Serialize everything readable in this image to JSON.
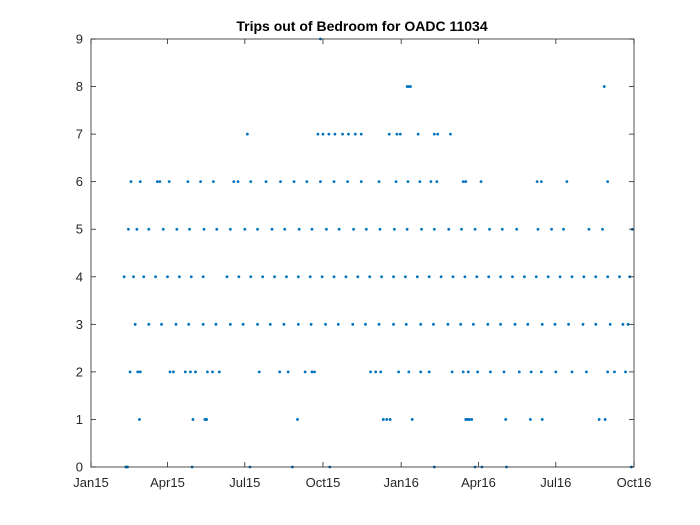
{
  "chart_data": {
    "type": "scatter",
    "title": "Trips out of Bedroom for OADC 11034",
    "xlabel": "",
    "ylabel": "",
    "x_axis": {
      "type": "date",
      "range": [
        "2015-01-01",
        "2016-10-01"
      ],
      "ticks": [
        {
          "date": "2015-01-01",
          "label": "Jan15"
        },
        {
          "date": "2015-04-01",
          "label": "Apr15"
        },
        {
          "date": "2015-07-01",
          "label": "Jul15"
        },
        {
          "date": "2015-10-01",
          "label": "Oct15"
        },
        {
          "date": "2016-01-01",
          "label": "Jan16"
        },
        {
          "date": "2016-04-01",
          "label": "Apr16"
        },
        {
          "date": "2016-07-01",
          "label": "Jul16"
        },
        {
          "date": "2016-10-01",
          "label": "Oct16"
        }
      ]
    },
    "y_axis": {
      "range": [
        0,
        9
      ],
      "ticks": [
        "0",
        "1",
        "2",
        "3",
        "4",
        "5",
        "6",
        "7",
        "8",
        "9"
      ]
    },
    "grid": false,
    "marker_color": "#0072BD",
    "series": [
      {
        "points": [
          {
            "x": "2015-02-11",
            "y": 0
          },
          {
            "x": "2015-02-12",
            "y": 0
          },
          {
            "x": "2015-02-13",
            "y": 0
          },
          {
            "x": "2015-04-30",
            "y": 0
          },
          {
            "x": "2015-07-07",
            "y": 0
          },
          {
            "x": "2015-08-26",
            "y": 0
          },
          {
            "x": "2015-10-09",
            "y": 0
          },
          {
            "x": "2016-02-09",
            "y": 0
          },
          {
            "x": "2016-03-28",
            "y": 0
          },
          {
            "x": "2016-04-05",
            "y": 0
          },
          {
            "x": "2016-05-04",
            "y": 0
          },
          {
            "x": "2016-09-28",
            "y": 0
          },
          {
            "x": "2015-02-27",
            "y": 1
          },
          {
            "x": "2015-05-01",
            "y": 1
          },
          {
            "x": "2015-05-15",
            "y": 1
          },
          {
            "x": "2015-05-17",
            "y": 1
          },
          {
            "x": "2015-09-01",
            "y": 1
          },
          {
            "x": "2015-12-11",
            "y": 1
          },
          {
            "x": "2015-12-15",
            "y": 1
          },
          {
            "x": "2015-12-19",
            "y": 1
          },
          {
            "x": "2016-01-14",
            "y": 1
          },
          {
            "x": "2016-03-17",
            "y": 1
          },
          {
            "x": "2016-03-19",
            "y": 1
          },
          {
            "x": "2016-03-21",
            "y": 1
          },
          {
            "x": "2016-03-24",
            "y": 1
          },
          {
            "x": "2016-05-03",
            "y": 1
          },
          {
            "x": "2016-06-01",
            "y": 1
          },
          {
            "x": "2016-06-15",
            "y": 1
          },
          {
            "x": "2016-08-21",
            "y": 1
          },
          {
            "x": "2016-08-28",
            "y": 1
          },
          {
            "x": "2015-02-16",
            "y": 2
          },
          {
            "x": "2015-02-25",
            "y": 2
          },
          {
            "x": "2015-02-28",
            "y": 2
          },
          {
            "x": "2015-04-04",
            "y": 2
          },
          {
            "x": "2015-04-08",
            "y": 2
          },
          {
            "x": "2015-04-22",
            "y": 2
          },
          {
            "x": "2015-04-28",
            "y": 2
          },
          {
            "x": "2015-05-04",
            "y": 2
          },
          {
            "x": "2015-05-18",
            "y": 2
          },
          {
            "x": "2015-05-24",
            "y": 2
          },
          {
            "x": "2015-06-01",
            "y": 2
          },
          {
            "x": "2015-07-18",
            "y": 2
          },
          {
            "x": "2015-08-11",
            "y": 2
          },
          {
            "x": "2015-08-21",
            "y": 2
          },
          {
            "x": "2015-09-10",
            "y": 2
          },
          {
            "x": "2015-09-18",
            "y": 2
          },
          {
            "x": "2015-09-21",
            "y": 2
          },
          {
            "x": "2015-11-26",
            "y": 2
          },
          {
            "x": "2015-12-02",
            "y": 2
          },
          {
            "x": "2015-12-08",
            "y": 2
          },
          {
            "x": "2015-12-29",
            "y": 2
          },
          {
            "x": "2016-01-10",
            "y": 2
          },
          {
            "x": "2016-01-24",
            "y": 2
          },
          {
            "x": "2016-02-03",
            "y": 2
          },
          {
            "x": "2016-03-01",
            "y": 2
          },
          {
            "x": "2016-03-14",
            "y": 2
          },
          {
            "x": "2016-03-20",
            "y": 2
          },
          {
            "x": "2016-03-31",
            "y": 2
          },
          {
            "x": "2016-04-15",
            "y": 2
          },
          {
            "x": "2016-05-01",
            "y": 2
          },
          {
            "x": "2016-05-19",
            "y": 2
          },
          {
            "x": "2016-06-02",
            "y": 2
          },
          {
            "x": "2016-06-14",
            "y": 2
          },
          {
            "x": "2016-07-01",
            "y": 2
          },
          {
            "x": "2016-07-20",
            "y": 2
          },
          {
            "x": "2016-08-06",
            "y": 2
          },
          {
            "x": "2016-08-31",
            "y": 2
          },
          {
            "x": "2016-09-08",
            "y": 2
          },
          {
            "x": "2016-09-21",
            "y": 2
          },
          {
            "x": "2015-02-22",
            "y": 3
          },
          {
            "x": "2015-03-10",
            "y": 3
          },
          {
            "x": "2015-03-25",
            "y": 3
          },
          {
            "x": "2015-04-11",
            "y": 3
          },
          {
            "x": "2015-04-26",
            "y": 3
          },
          {
            "x": "2015-05-13",
            "y": 3
          },
          {
            "x": "2015-05-28",
            "y": 3
          },
          {
            "x": "2015-06-14",
            "y": 3
          },
          {
            "x": "2015-06-29",
            "y": 3
          },
          {
            "x": "2015-07-16",
            "y": 3
          },
          {
            "x": "2015-07-31",
            "y": 3
          },
          {
            "x": "2015-08-16",
            "y": 3
          },
          {
            "x": "2015-09-02",
            "y": 3
          },
          {
            "x": "2015-09-17",
            "y": 3
          },
          {
            "x": "2015-10-04",
            "y": 3
          },
          {
            "x": "2015-10-19",
            "y": 3
          },
          {
            "x": "2015-11-05",
            "y": 3
          },
          {
            "x": "2015-11-20",
            "y": 3
          },
          {
            "x": "2015-12-06",
            "y": 3
          },
          {
            "x": "2015-12-23",
            "y": 3
          },
          {
            "x": "2016-01-07",
            "y": 3
          },
          {
            "x": "2016-01-24",
            "y": 3
          },
          {
            "x": "2016-02-08",
            "y": 3
          },
          {
            "x": "2016-02-25",
            "y": 3
          },
          {
            "x": "2016-03-11",
            "y": 3
          },
          {
            "x": "2016-03-26",
            "y": 3
          },
          {
            "x": "2016-04-12",
            "y": 3
          },
          {
            "x": "2016-04-27",
            "y": 3
          },
          {
            "x": "2016-05-14",
            "y": 3
          },
          {
            "x": "2016-05-29",
            "y": 3
          },
          {
            "x": "2016-06-15",
            "y": 3
          },
          {
            "x": "2016-06-30",
            "y": 3
          },
          {
            "x": "2016-07-16",
            "y": 3
          },
          {
            "x": "2016-08-02",
            "y": 3
          },
          {
            "x": "2016-08-17",
            "y": 3
          },
          {
            "x": "2016-09-03",
            "y": 3
          },
          {
            "x": "2016-09-18",
            "y": 3
          },
          {
            "x": "2016-09-24",
            "y": 3
          },
          {
            "x": "2015-02-09",
            "y": 4
          },
          {
            "x": "2015-02-20",
            "y": 4
          },
          {
            "x": "2015-03-04",
            "y": 4
          },
          {
            "x": "2015-03-18",
            "y": 4
          },
          {
            "x": "2015-04-01",
            "y": 4
          },
          {
            "x": "2015-04-15",
            "y": 4
          },
          {
            "x": "2015-04-29",
            "y": 4
          },
          {
            "x": "2015-05-13",
            "y": 4
          },
          {
            "x": "2015-06-10",
            "y": 4
          },
          {
            "x": "2015-06-24",
            "y": 4
          },
          {
            "x": "2015-07-08",
            "y": 4
          },
          {
            "x": "2015-07-22",
            "y": 4
          },
          {
            "x": "2015-08-05",
            "y": 4
          },
          {
            "x": "2015-08-19",
            "y": 4
          },
          {
            "x": "2015-09-02",
            "y": 4
          },
          {
            "x": "2015-09-16",
            "y": 4
          },
          {
            "x": "2015-09-30",
            "y": 4
          },
          {
            "x": "2015-10-14",
            "y": 4
          },
          {
            "x": "2015-10-28",
            "y": 4
          },
          {
            "x": "2015-11-11",
            "y": 4
          },
          {
            "x": "2015-11-25",
            "y": 4
          },
          {
            "x": "2015-12-09",
            "y": 4
          },
          {
            "x": "2015-12-23",
            "y": 4
          },
          {
            "x": "2016-01-06",
            "y": 4
          },
          {
            "x": "2016-01-20",
            "y": 4
          },
          {
            "x": "2016-02-03",
            "y": 4
          },
          {
            "x": "2016-02-17",
            "y": 4
          },
          {
            "x": "2016-03-02",
            "y": 4
          },
          {
            "x": "2016-03-16",
            "y": 4
          },
          {
            "x": "2016-03-30",
            "y": 4
          },
          {
            "x": "2016-04-13",
            "y": 4
          },
          {
            "x": "2016-04-27",
            "y": 4
          },
          {
            "x": "2016-05-11",
            "y": 4
          },
          {
            "x": "2016-05-25",
            "y": 4
          },
          {
            "x": "2016-06-08",
            "y": 4
          },
          {
            "x": "2016-06-22",
            "y": 4
          },
          {
            "x": "2016-07-06",
            "y": 4
          },
          {
            "x": "2016-07-20",
            "y": 4
          },
          {
            "x": "2016-08-03",
            "y": 4
          },
          {
            "x": "2016-08-17",
            "y": 4
          },
          {
            "x": "2016-08-31",
            "y": 4
          },
          {
            "x": "2016-09-14",
            "y": 4
          },
          {
            "x": "2016-09-26",
            "y": 4
          },
          {
            "x": "2015-02-14",
            "y": 5
          },
          {
            "x": "2015-02-24",
            "y": 5
          },
          {
            "x": "2015-03-10",
            "y": 5
          },
          {
            "x": "2015-03-27",
            "y": 5
          },
          {
            "x": "2015-04-12",
            "y": 5
          },
          {
            "x": "2015-04-27",
            "y": 5
          },
          {
            "x": "2015-05-14",
            "y": 5
          },
          {
            "x": "2015-05-29",
            "y": 5
          },
          {
            "x": "2015-06-14",
            "y": 5
          },
          {
            "x": "2015-07-01",
            "y": 5
          },
          {
            "x": "2015-07-16",
            "y": 5
          },
          {
            "x": "2015-08-02",
            "y": 5
          },
          {
            "x": "2015-08-17",
            "y": 5
          },
          {
            "x": "2015-09-03",
            "y": 5
          },
          {
            "x": "2015-09-18",
            "y": 5
          },
          {
            "x": "2015-10-05",
            "y": 5
          },
          {
            "x": "2015-10-20",
            "y": 5
          },
          {
            "x": "2015-11-06",
            "y": 5
          },
          {
            "x": "2015-11-21",
            "y": 5
          },
          {
            "x": "2015-12-07",
            "y": 5
          },
          {
            "x": "2015-12-24",
            "y": 5
          },
          {
            "x": "2016-01-08",
            "y": 5
          },
          {
            "x": "2016-01-25",
            "y": 5
          },
          {
            "x": "2016-02-09",
            "y": 5
          },
          {
            "x": "2016-02-26",
            "y": 5
          },
          {
            "x": "2016-03-12",
            "y": 5
          },
          {
            "x": "2016-03-28",
            "y": 5
          },
          {
            "x": "2016-04-14",
            "y": 5
          },
          {
            "x": "2016-04-29",
            "y": 5
          },
          {
            "x": "2016-05-16",
            "y": 5
          },
          {
            "x": "2016-06-10",
            "y": 5
          },
          {
            "x": "2016-06-26",
            "y": 5
          },
          {
            "x": "2016-07-10",
            "y": 5
          },
          {
            "x": "2016-08-09",
            "y": 5
          },
          {
            "x": "2016-08-25",
            "y": 5
          },
          {
            "x": "2016-09-29",
            "y": 5
          },
          {
            "x": "2015-02-17",
            "y": 6
          },
          {
            "x": "2015-02-28",
            "y": 6
          },
          {
            "x": "2015-03-20",
            "y": 6
          },
          {
            "x": "2015-03-23",
            "y": 6
          },
          {
            "x": "2015-04-03",
            "y": 6
          },
          {
            "x": "2015-04-25",
            "y": 6
          },
          {
            "x": "2015-05-10",
            "y": 6
          },
          {
            "x": "2015-05-25",
            "y": 6
          },
          {
            "x": "2015-06-18",
            "y": 6
          },
          {
            "x": "2015-06-23",
            "y": 6
          },
          {
            "x": "2015-07-08",
            "y": 6
          },
          {
            "x": "2015-07-26",
            "y": 6
          },
          {
            "x": "2015-08-12",
            "y": 6
          },
          {
            "x": "2015-08-28",
            "y": 6
          },
          {
            "x": "2015-09-12",
            "y": 6
          },
          {
            "x": "2015-09-28",
            "y": 6
          },
          {
            "x": "2015-10-14",
            "y": 6
          },
          {
            "x": "2015-10-30",
            "y": 6
          },
          {
            "x": "2015-11-15",
            "y": 6
          },
          {
            "x": "2015-12-06",
            "y": 6
          },
          {
            "x": "2015-12-26",
            "y": 6
          },
          {
            "x": "2016-01-09",
            "y": 6
          },
          {
            "x": "2016-01-23",
            "y": 6
          },
          {
            "x": "2016-02-05",
            "y": 6
          },
          {
            "x": "2016-02-12",
            "y": 6
          },
          {
            "x": "2016-03-14",
            "y": 6
          },
          {
            "x": "2016-03-17",
            "y": 6
          },
          {
            "x": "2016-04-04",
            "y": 6
          },
          {
            "x": "2016-06-09",
            "y": 6
          },
          {
            "x": "2016-06-14",
            "y": 6
          },
          {
            "x": "2016-07-14",
            "y": 6
          },
          {
            "x": "2016-08-31",
            "y": 6
          },
          {
            "x": "2015-07-04",
            "y": 7
          },
          {
            "x": "2015-09-25",
            "y": 7
          },
          {
            "x": "2015-10-01",
            "y": 7
          },
          {
            "x": "2015-10-08",
            "y": 7
          },
          {
            "x": "2015-10-15",
            "y": 7
          },
          {
            "x": "2015-10-24",
            "y": 7
          },
          {
            "x": "2015-10-31",
            "y": 7
          },
          {
            "x": "2015-11-08",
            "y": 7
          },
          {
            "x": "2015-11-15",
            "y": 7
          },
          {
            "x": "2015-12-18",
            "y": 7
          },
          {
            "x": "2015-12-27",
            "y": 7
          },
          {
            "x": "2015-12-31",
            "y": 7
          },
          {
            "x": "2016-01-21",
            "y": 7
          },
          {
            "x": "2016-02-09",
            "y": 7
          },
          {
            "x": "2016-02-13",
            "y": 7
          },
          {
            "x": "2016-02-28",
            "y": 7
          },
          {
            "x": "2016-01-08",
            "y": 8
          },
          {
            "x": "2016-01-10",
            "y": 8
          },
          {
            "x": "2016-01-12",
            "y": 8
          },
          {
            "x": "2016-08-27",
            "y": 8
          },
          {
            "x": "2015-09-28",
            "y": 9
          }
        ]
      }
    ]
  }
}
